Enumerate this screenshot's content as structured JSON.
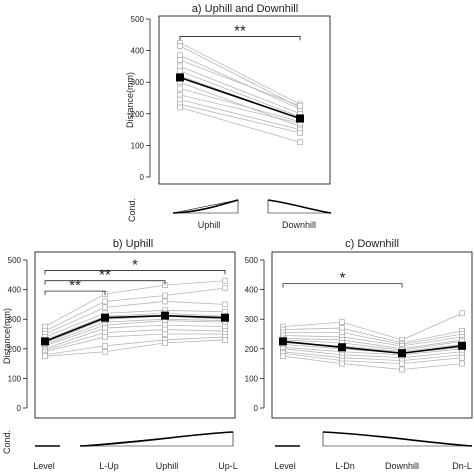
{
  "chart_data": [
    {
      "type": "line",
      "title": "a) Uphill and Downhill",
      "ylabel": "Distance(mm)",
      "cond_label": "Cond.",
      "categories": [
        "Uphill",
        "Downhill"
      ],
      "ylim": [
        0,
        500
      ],
      "yticks": [
        0,
        100,
        200,
        300,
        400,
        500
      ],
      "mean": [
        315,
        185
      ],
      "subjects": [
        [
          425,
          230
        ],
        [
          415,
          220
        ],
        [
          385,
          215
        ],
        [
          370,
          225
        ],
        [
          350,
          200
        ],
        [
          335,
          190
        ],
        [
          320,
          185
        ],
        [
          300,
          160
        ],
        [
          280,
          175
        ],
        [
          260,
          170
        ],
        [
          245,
          150
        ],
        [
          230,
          140
        ],
        [
          220,
          110
        ]
      ],
      "annotations": [
        {
          "text": "**",
          "from": 0,
          "to": 1,
          "y": 445
        }
      ]
    },
    {
      "type": "line",
      "title": "b) Uphill",
      "ylabel": "Distance(mm)",
      "cond_label": "Cond.",
      "categories": [
        "Level",
        "L-Up",
        "Uphill",
        "Up-L"
      ],
      "ylim": [
        0,
        500
      ],
      "yticks": [
        0,
        100,
        200,
        300,
        400,
        500
      ],
      "mean": [
        225,
        305,
        312,
        305
      ],
      "subjects": [
        [
          275,
          385,
          415,
          430
        ],
        [
          260,
          360,
          380,
          405
        ],
        [
          250,
          340,
          360,
          350
        ],
        [
          240,
          320,
          330,
          325
        ],
        [
          230,
          310,
          320,
          310
        ],
        [
          220,
          300,
          310,
          300
        ],
        [
          215,
          290,
          300,
          295
        ],
        [
          210,
          280,
          295,
          290
        ],
        [
          200,
          270,
          280,
          275
        ],
        [
          195,
          255,
          265,
          260
        ],
        [
          190,
          240,
          250,
          250
        ],
        [
          180,
          210,
          230,
          240
        ],
        [
          175,
          190,
          220,
          230
        ]
      ],
      "annotations": [
        {
          "text": "**",
          "from": 0,
          "to": 1,
          "y": 395
        },
        {
          "text": "**",
          "from": 0,
          "to": 2,
          "y": 430
        },
        {
          "text": "*",
          "from": 0,
          "to": 3,
          "y": 465
        }
      ]
    },
    {
      "type": "line",
      "title": "c) Downhill",
      "ylabel": "",
      "cond_label": "",
      "categories": [
        "Level",
        "L-Dn",
        "Downhill",
        "Dn-L"
      ],
      "ylim": [
        0,
        500
      ],
      "yticks": [
        0,
        100,
        200,
        300,
        400,
        500
      ],
      "mean": [
        225,
        205,
        185,
        210
      ],
      "subjects": [
        [
          275,
          290,
          230,
          320
        ],
        [
          265,
          270,
          220,
          260
        ],
        [
          255,
          255,
          215,
          250
        ],
        [
          245,
          240,
          210,
          240
        ],
        [
          235,
          230,
          200,
          230
        ],
        [
          230,
          220,
          195,
          225
        ],
        [
          220,
          210,
          190,
          215
        ],
        [
          215,
          200,
          185,
          205
        ],
        [
          205,
          190,
          180,
          200
        ],
        [
          200,
          180,
          170,
          190
        ],
        [
          190,
          170,
          160,
          180
        ],
        [
          185,
          160,
          150,
          170
        ],
        [
          175,
          150,
          130,
          150
        ]
      ],
      "annotations": [
        {
          "text": "*",
          "from": 0,
          "to": 2,
          "y": 420
        }
      ]
    }
  ]
}
